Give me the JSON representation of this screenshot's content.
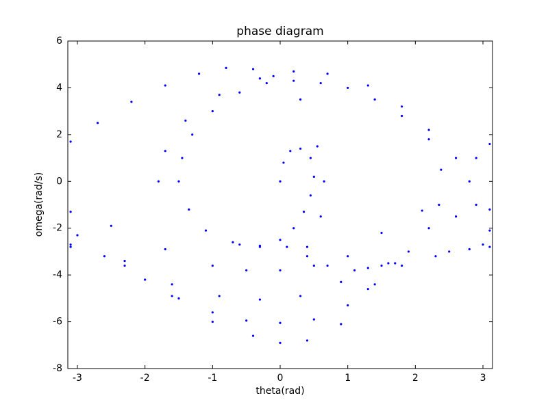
{
  "chart_data": {
    "type": "scatter",
    "title": "phase diagram",
    "x_label": "theta(rad)",
    "y_label": "omega(rad/s)",
    "color": "#0000ff",
    "xlim": [
      -3.1416,
      3.1416
    ],
    "ylim": [
      -8,
      6
    ],
    "xticks": [
      -3,
      -2,
      -1,
      0,
      1,
      2,
      3
    ],
    "yticks": [
      -8,
      -6,
      -4,
      -2,
      0,
      2,
      4,
      6
    ],
    "x": [
      0,
      0.05,
      0.15,
      0.3,
      0.45,
      0.5,
      0.45,
      0.35,
      0.2,
      0,
      -0.3,
      -0.6,
      -1.5,
      -1.45,
      -1.3,
      -1.0,
      -0.6,
      -0.2,
      0.2,
      0.6,
      1.0,
      1.4,
      1.8,
      2.2,
      2.38,
      2.35,
      2.2,
      1.9,
      1.5,
      1.1,
      0.7,
      0.4,
      0.1,
      -0.3,
      -0.7,
      -1.1,
      -1.35,
      -1.8,
      -1.7,
      -1.4,
      -0.9,
      -0.3,
      0.2,
      0.7,
      1.3,
      1.8,
      2.2,
      2.6,
      2.8,
      2.9,
      3.1,
      -3.1,
      -2.7,
      -2.2,
      -1.7,
      -1.2,
      -0.8,
      -0.4,
      -0.1,
      0.3,
      0.55,
      0.65,
      0.6,
      0.4,
      -3.1,
      -2.6,
      -2.0,
      -1.5,
      -1.0,
      -0.5,
      0,
      0.5,
      1.0,
      1.4,
      1.8,
      2.3,
      2.8,
      3.1,
      -3.1,
      -2.3,
      -1.6,
      -1.0,
      -0.4,
      0,
      0.4,
      0.9,
      1.3,
      1.6,
      -3.1,
      -2.5,
      -1.7,
      -1.0,
      -0.5,
      0,
      0.5,
      1.0,
      1.5,
      2.1,
      2.6,
      3.1,
      -3.0,
      -2.3,
      -1.6,
      -0.9,
      -0.3,
      0.3,
      0.9,
      1.3,
      1.7,
      2.5,
      3.0,
      2.9,
      3.1
    ],
    "y": [
      0,
      0.8,
      1.3,
      1.4,
      1.0,
      0.2,
      -0.6,
      -1.3,
      -2.0,
      -2.5,
      -2.75,
      -2.7,
      0,
      1,
      2,
      3,
      3.8,
      4.2,
      4.3,
      4.2,
      4.0,
      3.5,
      2.8,
      1.8,
      0.5,
      -1,
      -2,
      -3,
      -3.6,
      -3.8,
      -3.6,
      -3.2,
      -2.8,
      -2.8,
      -2.6,
      -2.1,
      -1.2,
      0,
      1.3,
      2.6,
      3.7,
      4.4,
      4.7,
      4.6,
      4.1,
      3.2,
      2.2,
      1.0,
      0,
      -1,
      -1.2,
      1.7,
      2.5,
      3.4,
      4.1,
      4.6,
      4.85,
      4.8,
      4.5,
      3.5,
      1.5,
      0,
      -1.5,
      -2.8,
      -2.8,
      -3.2,
      -4.2,
      -5.0,
      -5.6,
      -5.95,
      -6.05,
      -5.9,
      -5.3,
      -4.4,
      -3.6,
      -3.2,
      -2.9,
      -2.8,
      -2.7,
      -3.4,
      -4.9,
      -6.0,
      -6.6,
      -6.9,
      -6.8,
      -6.1,
      -4.6,
      -3.5,
      -1.3,
      -1.9,
      -2.9,
      -3.6,
      -3.8,
      -3.8,
      -3.6,
      -3.2,
      -2.2,
      -1.25,
      -1.5,
      -2.1,
      -2.3,
      -3.6,
      -4.4,
      -4.9,
      -5.05,
      -4.9,
      -4.3,
      -3.7,
      -3.5,
      -3.0,
      -2.7,
      1,
      1.6
    ]
  }
}
